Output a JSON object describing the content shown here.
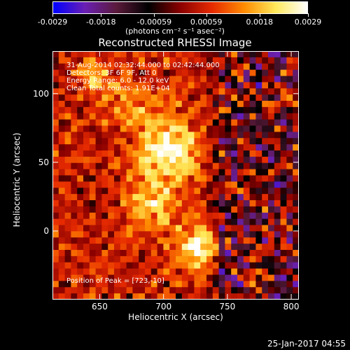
{
  "chart_data": {
    "type": "heatmap",
    "title": "Reconstructed RHESSI Image",
    "xlabel": "Heliocentric X (arcsec)",
    "ylabel": "Heliocentric Y (arcsec)",
    "xlim": [
      613,
      806
    ],
    "ylim": [
      -50,
      131
    ],
    "x_ticks": [
      650,
      700,
      750,
      800
    ],
    "y_ticks": [
      0,
      50,
      100
    ],
    "annotations": [
      "31-Aug-2014 02:32:44.000 to 02:42:44.000",
      "Detectors: 3F 6F 9F, Att 0",
      "Energy Range: 6.0 - 12.0 keV",
      "Clean     Total counts: 1.91E+04"
    ],
    "peak_label": "Position of Peak = [723,-10]",
    "peak": [
      723,
      -10
    ],
    "colorbar": {
      "ticks": [
        "-0.0029",
        "-0.0018",
        "-0.00059",
        "0.00059",
        "0.0018",
        "0.0029"
      ],
      "range": [
        -0.0029,
        0.0029
      ],
      "units": "(photons cm⁻² s⁻¹ asec⁻²)"
    },
    "colormap": [
      "#0000ff",
      "#6a1fb3",
      "#5a1a3a",
      "#000000",
      "#8a0000",
      "#e62a00",
      "#ff8a00",
      "#ffe85a",
      "#ffffff"
    ]
  },
  "timestamp": "25-Jan-2017 04:55"
}
